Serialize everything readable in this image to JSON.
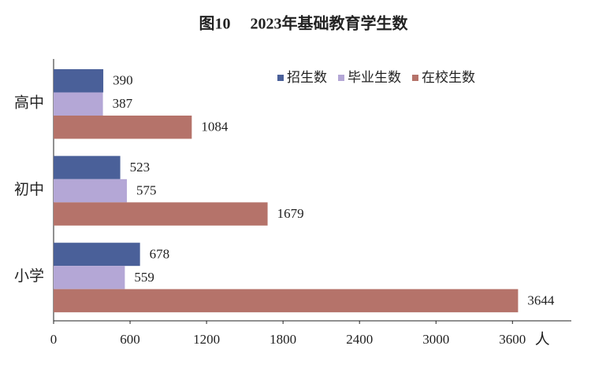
{
  "chart_data": {
    "type": "bar",
    "orientation": "horizontal",
    "title": "图10　 2023年基础教育学生数",
    "categories": [
      "高中",
      "初中",
      "小学"
    ],
    "series": [
      {
        "name": "招生数",
        "color": "#4a6099",
        "values": [
          390,
          523,
          678
        ]
      },
      {
        "name": "毕业生数",
        "color": "#b4a7d6",
        "values": [
          387,
          575,
          559
        ]
      },
      {
        "name": "在校生数",
        "color": "#b5736a",
        "values": [
          1084,
          1679,
          3644
        ]
      }
    ],
    "xlim": [
      0,
      4000
    ],
    "xticks": [
      0,
      600,
      1200,
      1800,
      2400,
      3000,
      3600
    ],
    "x_label": "人",
    "legend": "top-right",
    "grid": false
  }
}
